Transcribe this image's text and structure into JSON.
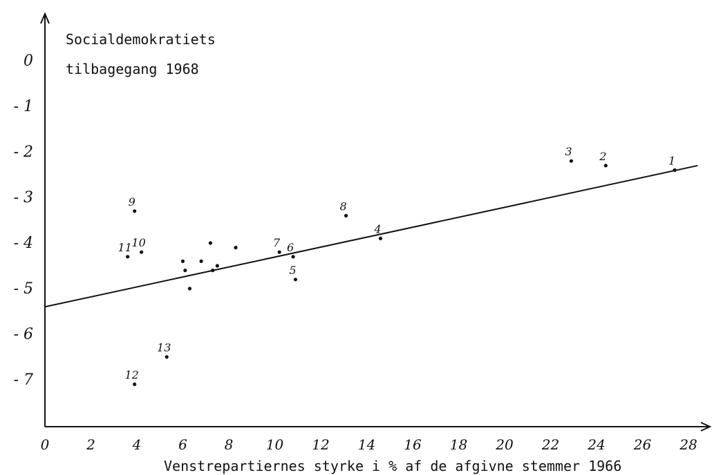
{
  "chart_data": {
    "type": "scatter",
    "title": "Socialdemokratiets tilbagegang 1968",
    "title_lines": [
      "Socialdemokratiets",
      "tilbagegang 1968"
    ],
    "xlabel": "Venstrepartiernes styrke i % af de afgivne stemmer 1966",
    "ylabel": "",
    "xlim": [
      0,
      28
    ],
    "ylim": [
      -8,
      1
    ],
    "x_ticks": [
      0,
      2,
      4,
      6,
      8,
      10,
      12,
      14,
      16,
      18,
      20,
      22,
      24,
      26,
      28
    ],
    "x_tick_labels": [
      "0",
      "2",
      "4",
      "6",
      "8",
      "10",
      "12",
      "14",
      "16",
      "18",
      "20",
      "22",
      "24",
      "26",
      "28"
    ],
    "y_ticks": [
      0,
      -1,
      -2,
      -3,
      -4,
      -5,
      -6,
      -7
    ],
    "y_tick_labels": [
      "0",
      "- 1",
      "- 2",
      "- 3",
      "- 4",
      "- 5",
      "- 6",
      "- 7"
    ],
    "grid": false,
    "points": [
      {
        "x": 27.4,
        "y": -2.4,
        "label": "1"
      },
      {
        "x": 24.4,
        "y": -2.3,
        "label": "2"
      },
      {
        "x": 22.9,
        "y": -2.2,
        "label": "3"
      },
      {
        "x": 14.6,
        "y": -3.9,
        "label": "4"
      },
      {
        "x": 10.9,
        "y": -4.8,
        "label": "5"
      },
      {
        "x": 10.8,
        "y": -4.3,
        "label": "6"
      },
      {
        "x": 10.2,
        "y": -4.2,
        "label": "7"
      },
      {
        "x": 13.1,
        "y": -3.4,
        "label": "8"
      },
      {
        "x": 3.9,
        "y": -3.3,
        "label": "9"
      },
      {
        "x": 4.2,
        "y": -4.2,
        "label": "10"
      },
      {
        "x": 3.6,
        "y": -4.3,
        "label": "11"
      },
      {
        "x": 3.9,
        "y": -7.1,
        "label": "12"
      },
      {
        "x": 5.3,
        "y": -6.5,
        "label": "13"
      },
      {
        "x": 6.0,
        "y": -4.4,
        "label": ""
      },
      {
        "x": 6.1,
        "y": -4.6,
        "label": ""
      },
      {
        "x": 6.3,
        "y": -5.0,
        "label": ""
      },
      {
        "x": 6.8,
        "y": -4.4,
        "label": ""
      },
      {
        "x": 7.2,
        "y": -4.0,
        "label": ""
      },
      {
        "x": 7.3,
        "y": -4.6,
        "label": ""
      },
      {
        "x": 7.5,
        "y": -4.5,
        "label": ""
      },
      {
        "x": 8.3,
        "y": -4.1,
        "label": ""
      }
    ],
    "trend_line": {
      "x": [
        0,
        28.4
      ],
      "y": [
        -5.4,
        -2.3
      ]
    }
  }
}
